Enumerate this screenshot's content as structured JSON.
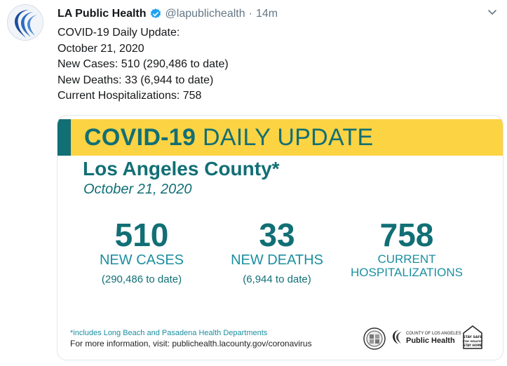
{
  "tweet": {
    "name": "LA Public Health",
    "handle": "@lapublichealth",
    "separator": "·",
    "time": "14m",
    "lines": [
      "COVID-19 Daily Update:",
      "October 21, 2020",
      "New Cases: 510 (290,486 to date)",
      "New Deaths: 33 (6,944 to date)",
      "Current Hospitalizations: 758"
    ]
  },
  "card": {
    "banner_bold": "COVID-19",
    "banner_rest": " DAILY UPDATE",
    "county": "Los Angeles County*",
    "date": "October 21, 2020",
    "stats": [
      {
        "number": "510",
        "label": "NEW CASES",
        "to_date": "(290,486 to date)"
      },
      {
        "number": "33",
        "label": "NEW DEATHS",
        "to_date": "(6,944 to date)"
      },
      {
        "number": "758",
        "label_line1": "CURRENT",
        "label_line2": "HOSPITALIZATIONS"
      }
    ],
    "footnote": "*includes Long Beach and Pasadena Health Departments",
    "more_info": "For more information, visit: publichealth.lacounty.gov/coronavirus",
    "logo_small": "COUNTY OF LOS ANGELES",
    "logo_big": "Public Health",
    "badge_lines": [
      "STAY SAFE",
      "STAY HEALTHY",
      "STAY HOME"
    ]
  },
  "colors": {
    "brand_teal": "#116f75",
    "banner_yellow": "#fcd343",
    "label_teal": "#1c8fa0",
    "verified_blue": "#1da1f2",
    "muted": "#657786"
  },
  "icons": [
    "avatar-logo-icon",
    "verified-badge-icon",
    "chevron-down-icon",
    "county-seal-icon",
    "public-health-logo-icon",
    "stay-safe-badge-icon"
  ]
}
